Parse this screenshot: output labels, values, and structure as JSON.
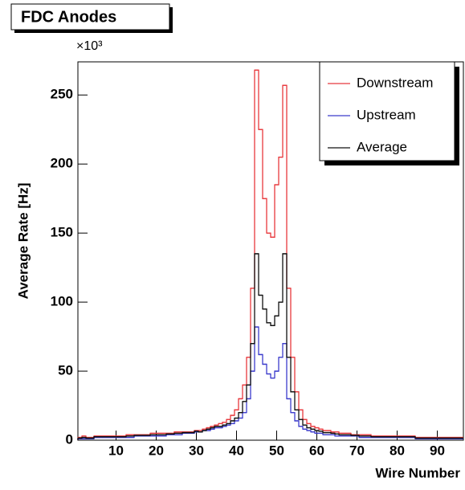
{
  "chart_data": {
    "type": "histogram",
    "title": "FDC Anodes",
    "x_label": "Wire Number",
    "y_label": "Average Rate [Hz]",
    "y_scale_label": "×10³",
    "bins": [
      0.5,
      1.5,
      2.5,
      3.5,
      4.5,
      5.5,
      6.5,
      7.5,
      8.5,
      9.5,
      10.5,
      11.5,
      12.5,
      13.5,
      14.5,
      15.5,
      16.5,
      17.5,
      18.5,
      19.5,
      20.5,
      21.5,
      22.5,
      23.5,
      24.5,
      25.5,
      26.5,
      27.5,
      28.5,
      29.5,
      30.5,
      31.5,
      32.5,
      33.5,
      34.5,
      35.5,
      36.5,
      37.5,
      38.5,
      39.5,
      40.5,
      41.5,
      42.5,
      43.5,
      44.5,
      45.5,
      46.5,
      47.5,
      48.5,
      49.5,
      50.5,
      51.5,
      52.5,
      53.5,
      54.5,
      55.5,
      56.5,
      57.5,
      58.5,
      59.5,
      60.5,
      61.5,
      62.5,
      63.5,
      64.5,
      65.5,
      66.5,
      67.5,
      68.5,
      69.5,
      70.5,
      71.5,
      72.5,
      73.5,
      74.5,
      75.5,
      76.5,
      77.5,
      78.5,
      79.5,
      80.5,
      81.5,
      82.5,
      83.5,
      84.5,
      85.5,
      86.5,
      87.5,
      88.5,
      89.5,
      90.5,
      91.5,
      92.5,
      93.5,
      94.5,
      95.5,
      96.5
    ],
    "series": [
      {
        "name": "Downstream",
        "color": "#e8393d",
        "values": [
          2,
          3,
          2,
          2,
          3,
          3,
          3,
          3,
          3,
          3,
          3,
          3,
          4,
          4,
          4,
          4,
          4,
          4,
          5,
          5,
          5,
          5,
          5,
          5,
          6,
          6,
          6,
          6,
          6,
          7,
          7,
          8,
          9,
          10,
          11,
          12,
          13,
          15,
          18,
          22,
          30,
          40,
          60,
          110,
          268,
          225,
          175,
          150,
          147,
          185,
          205,
          257,
          110,
          60,
          35,
          22,
          15,
          12,
          10,
          9,
          8,
          7,
          7,
          6,
          6,
          5,
          5,
          5,
          4,
          4,
          4,
          4,
          4,
          3,
          3,
          3,
          3,
          3,
          3,
          3,
          3,
          3,
          3,
          3,
          2,
          2,
          2,
          2,
          2,
          2,
          2,
          2,
          2,
          2,
          2,
          2
        ]
      },
      {
        "name": "Upstream",
        "color": "#3c3ccc",
        "values": [
          1,
          1,
          1,
          1,
          2,
          2,
          2,
          2,
          2,
          2,
          2,
          2,
          2,
          2,
          3,
          3,
          3,
          3,
          3,
          3,
          3,
          3,
          4,
          4,
          4,
          4,
          5,
          5,
          5,
          6,
          6,
          7,
          7,
          8,
          9,
          9,
          10,
          11,
          12,
          14,
          16,
          20,
          30,
          50,
          82,
          62,
          55,
          48,
          45,
          50,
          60,
          70,
          30,
          20,
          14,
          10,
          8,
          7,
          6,
          5,
          5,
          4,
          4,
          4,
          3,
          3,
          3,
          3,
          3,
          3,
          2,
          2,
          2,
          2,
          2,
          2,
          2,
          2,
          2,
          2,
          2,
          2,
          2,
          2,
          1,
          1,
          1,
          1,
          1,
          1,
          1,
          1,
          1,
          1,
          1,
          1
        ]
      },
      {
        "name": "Average",
        "color": "#111111",
        "values": [
          1.5,
          2,
          1.5,
          1.5,
          2.5,
          2.5,
          2.5,
          2.5,
          2.5,
          2.5,
          2.5,
          2.5,
          3,
          3,
          3.5,
          3.5,
          3.5,
          3.5,
          4,
          4,
          4,
          4,
          4.5,
          4.5,
          5,
          5,
          5.5,
          5.5,
          5.5,
          6.5,
          6,
          7,
          8,
          9,
          10,
          10,
          11,
          12,
          14,
          16,
          20,
          28,
          40,
          70,
          135,
          105,
          95,
          85,
          83,
          90,
          100,
          135,
          60,
          35,
          22,
          15,
          11,
          9,
          8,
          7,
          6.5,
          5.5,
          5.5,
          5,
          4.5,
          4,
          4,
          4,
          3.5,
          3.5,
          3,
          3,
          3,
          2.5,
          2.5,
          2.5,
          2.5,
          2.5,
          2.5,
          2.5,
          2.5,
          2.5,
          2.5,
          2.5,
          1.5,
          1.5,
          1.5,
          1.5,
          1.5,
          1.5,
          1.5,
          1.5,
          1.5,
          1.5,
          1.5,
          1.5
        ]
      }
    ],
    "xlim": [
      0.5,
      96.5
    ],
    "ylim": [
      0,
      274
    ],
    "xticks": [
      10,
      20,
      30,
      40,
      50,
      60,
      70,
      80,
      90
    ],
    "yticks": [
      0,
      50,
      100,
      150,
      200,
      250
    ],
    "legend": "top-right"
  }
}
